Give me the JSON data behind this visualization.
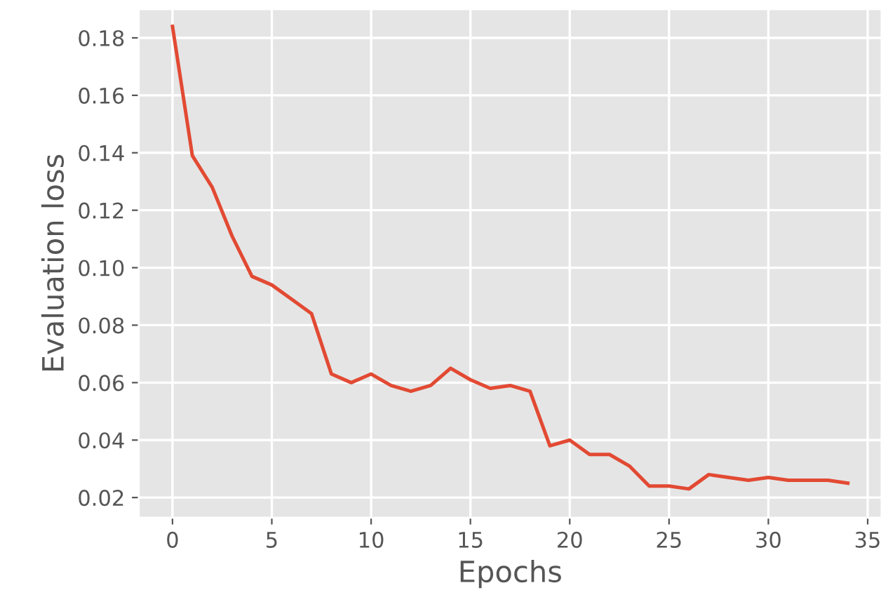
{
  "chart_data": {
    "type": "line",
    "xlabel": "Epochs",
    "ylabel": "Evaluation loss",
    "x": [
      0,
      1,
      2,
      3,
      4,
      5,
      6,
      7,
      8,
      9,
      10,
      11,
      12,
      13,
      14,
      15,
      16,
      17,
      18,
      19,
      20,
      21,
      22,
      23,
      24,
      25,
      26,
      27,
      28,
      29,
      30,
      31,
      32,
      33,
      34
    ],
    "series": [
      {
        "color": "#e24a33",
        "values": [
          0.184,
          0.139,
          0.128,
          0.111,
          0.097,
          0.094,
          0.089,
          0.084,
          0.063,
          0.06,
          0.063,
          0.059,
          0.057,
          0.059,
          0.065,
          0.061,
          0.058,
          0.059,
          0.057,
          0.038,
          0.04,
          0.035,
          0.035,
          0.031,
          0.024,
          0.024,
          0.023,
          0.028,
          0.027,
          0.026,
          0.027,
          0.026,
          0.026,
          0.026,
          0.025
        ]
      }
    ],
    "xlim": [
      -1.7,
      35.7
    ],
    "ylim": [
      0.013,
      0.19
    ],
    "xticks": [
      0,
      5,
      10,
      15,
      20,
      25,
      30,
      35
    ],
    "yticks": [
      {
        "value": 0.02,
        "label": "0.02"
      },
      {
        "value": 0.04,
        "label": "0.04"
      },
      {
        "value": 0.06,
        "label": "0.06"
      },
      {
        "value": 0.08,
        "label": "0.08"
      },
      {
        "value": 0.1,
        "label": "0.10"
      },
      {
        "value": 0.12,
        "label": "0.12"
      },
      {
        "value": 0.14,
        "label": "0.14"
      },
      {
        "value": 0.16,
        "label": "0.16"
      },
      {
        "value": 0.18,
        "label": "0.18"
      }
    ],
    "grid": true,
    "legend": false,
    "marker": "none",
    "line_style": "solid"
  }
}
